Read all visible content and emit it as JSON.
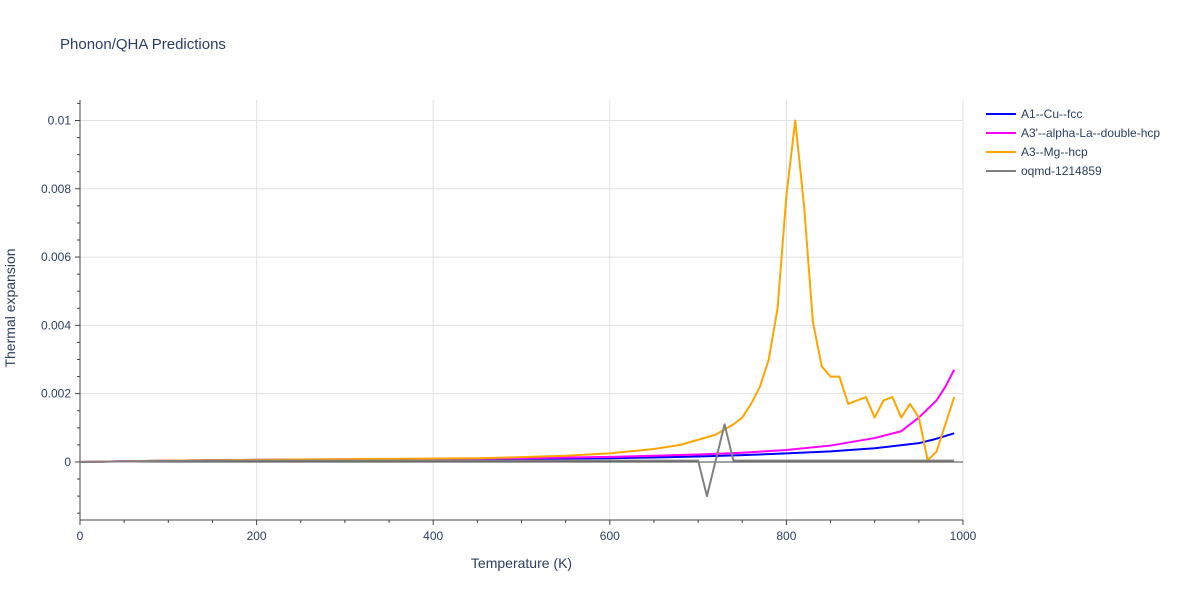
{
  "chart_data": {
    "type": "line",
    "title": "Phonon/QHA Predictions",
    "xlabel": "Temperature (K)",
    "ylabel": "Thermal expansion",
    "xlim": [
      0,
      1000
    ],
    "ylim": [
      -0.0017,
      0.0106
    ],
    "x_ticks": [
      0,
      200,
      400,
      600,
      800,
      1000
    ],
    "x_tick_labels": [
      "0",
      "200",
      "400",
      "600",
      "800",
      "1000"
    ],
    "y_ticks": [
      0,
      0.002,
      0.004,
      0.006,
      0.008,
      0.01
    ],
    "y_tick_labels": [
      "0",
      "0.002",
      "0.004",
      "0.006",
      "0.008",
      "0.01"
    ],
    "grid": true,
    "legend_position": "top-right",
    "series": [
      {
        "name": "A1--Cu--fcc",
        "color": "#0000ff",
        "x": [
          0,
          50,
          100,
          150,
          200,
          250,
          300,
          350,
          400,
          450,
          500,
          550,
          600,
          650,
          700,
          750,
          800,
          850,
          900,
          950,
          970,
          990
        ],
        "y": [
          0,
          2e-05,
          4e-05,
          5e-05,
          6e-05,
          6e-05,
          7e-05,
          7e-05,
          8e-05,
          8e-05,
          9e-05,
          0.0001,
          0.00011,
          0.00013,
          0.00016,
          0.0002,
          0.00025,
          0.00031,
          0.0004,
          0.00055,
          0.00068,
          0.00084
        ]
      },
      {
        "name": "A3'--alpha-La--double-hcp",
        "color": "#ff00ff",
        "x": [
          0,
          50,
          100,
          150,
          200,
          250,
          300,
          350,
          400,
          450,
          500,
          550,
          600,
          650,
          700,
          750,
          800,
          850,
          900,
          930,
          950,
          970,
          980,
          990
        ],
        "y": [
          0,
          2e-05,
          4e-05,
          5e-05,
          6e-05,
          7e-05,
          8e-05,
          8e-05,
          9e-05,
          0.0001,
          0.00011,
          0.00013,
          0.00015,
          0.00018,
          0.00022,
          0.00027,
          0.00035,
          0.00048,
          0.0007,
          0.0009,
          0.0013,
          0.0018,
          0.0022,
          0.0027
        ]
      },
      {
        "name": "A3--Mg--hcp",
        "color": "#ffa500",
        "x": [
          0,
          50,
          100,
          150,
          200,
          250,
          300,
          350,
          400,
          450,
          500,
          550,
          600,
          650,
          680,
          700,
          720,
          740,
          750,
          760,
          770,
          780,
          790,
          800,
          810,
          820,
          830,
          840,
          850,
          860,
          870,
          880,
          890,
          900,
          910,
          920,
          930,
          940,
          950,
          960,
          970,
          980,
          990
        ],
        "y": [
          0,
          2e-05,
          4e-05,
          5e-05,
          6e-05,
          7e-05,
          8e-05,
          9e-05,
          0.0001,
          0.00011,
          0.00014,
          0.00018,
          0.00025,
          0.00038,
          0.0005,
          0.00065,
          0.0008,
          0.0011,
          0.0013,
          0.0017,
          0.0022,
          0.003,
          0.0045,
          0.0078,
          0.01,
          0.0075,
          0.0041,
          0.0028,
          0.0025,
          0.0025,
          0.0017,
          0.0018,
          0.0019,
          0.0013,
          0.0018,
          0.0019,
          0.0013,
          0.0017,
          0.0013,
          5e-05,
          0.0003,
          0.0011,
          0.0019
        ]
      },
      {
        "name": "oqmd-1214859",
        "color": "#808080",
        "x": [
          0,
          100,
          200,
          300,
          400,
          500,
          600,
          700,
          710,
          730,
          740,
          800,
          900,
          990
        ],
        "y": [
          0,
          3e-05,
          4e-05,
          4e-05,
          4e-05,
          4e-05,
          4e-05,
          4e-05,
          -0.001,
          0.0011,
          4e-05,
          4e-05,
          4e-05,
          4e-05
        ]
      }
    ]
  }
}
